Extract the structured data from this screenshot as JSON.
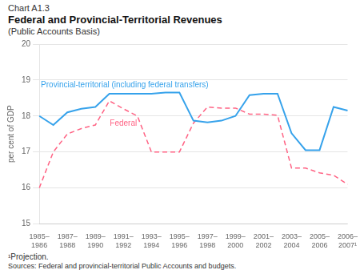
{
  "chart_data": {
    "type": "line",
    "chart_label": "Chart A1.3",
    "title": "Federal and Provincial-Territorial Revenues",
    "subtitle": "(Public Accounts Basis)",
    "ylabel": "per cent of GDP",
    "footnote": "¹Projection.",
    "sources": "Sources: Federal and provincial-territorial Public Accounts and budgets.",
    "categories": [
      "1985–\n1986",
      null,
      "1987–\n1988",
      null,
      "1989–\n1990",
      null,
      "1991–\n1992",
      null,
      "1993–\n1994",
      null,
      "1995–\n1996",
      null,
      "1997–\n1998",
      null,
      "1999–\n2000",
      null,
      "2001–\n2002",
      null,
      "2003–\n2004",
      null,
      "2005–\n2006",
      null,
      "2006–\n2007¹"
    ],
    "series": [
      {
        "name": "Provincial-territorial (including federal transfers)",
        "line_style": "solid",
        "values": [
          18.0,
          17.75,
          18.1,
          18.2,
          18.25,
          18.62,
          18.62,
          18.62,
          18.62,
          18.65,
          18.65,
          17.87,
          17.82,
          17.87,
          18.0,
          18.58,
          18.62,
          18.62,
          17.52,
          17.05,
          17.05,
          18.25,
          18.15
        ]
      },
      {
        "name": "Federal",
        "line_style": "dashed",
        "values": [
          16.0,
          17.0,
          17.5,
          17.65,
          17.75,
          18.42,
          18.2,
          18.0,
          17.0,
          17.0,
          17.0,
          17.8,
          18.25,
          18.22,
          18.22,
          18.05,
          18.05,
          18.02,
          16.55,
          16.55,
          16.42,
          16.35,
          16.1
        ]
      }
    ],
    "ylim": [
      15,
      20
    ],
    "yticks": [
      15,
      16,
      17,
      18,
      19,
      20
    ],
    "grid": true
  }
}
